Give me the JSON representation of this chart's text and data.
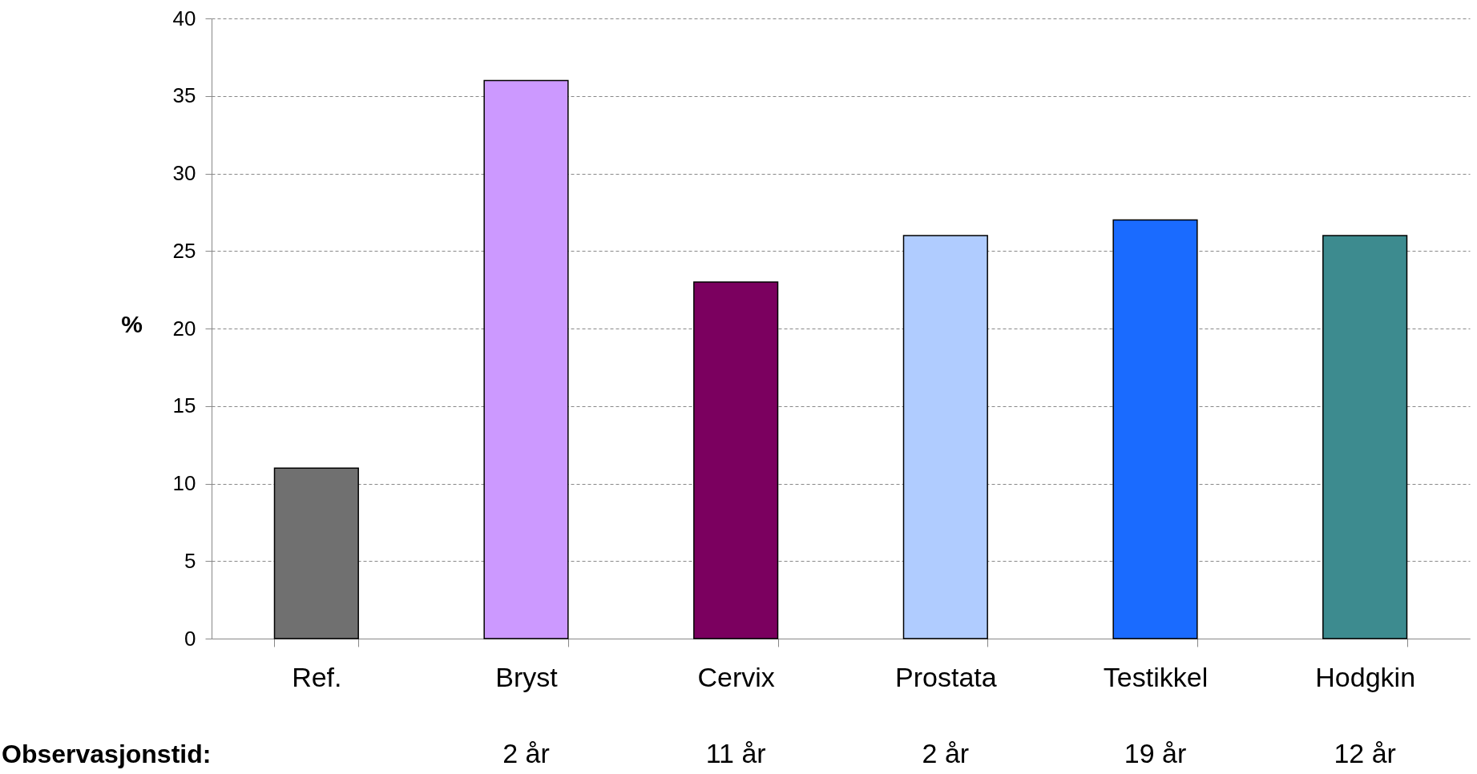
{
  "chart_data": {
    "type": "bar",
    "ylabel": "%",
    "categories": [
      "Ref.",
      "Bryst",
      "Cervix",
      "Prostata",
      "Testikkel",
      "Hodgkin"
    ],
    "values": [
      11,
      36,
      23,
      26,
      27,
      26
    ],
    "colors": [
      "#707070",
      "#cc99ff",
      "#7b005f",
      "#b0ccff",
      "#1a6bff",
      "#3d8b8f"
    ],
    "ylim": [
      0,
      40
    ],
    "yticks": [
      0,
      5,
      10,
      15,
      20,
      25,
      30,
      35,
      40
    ],
    "grid": "y",
    "annotations": [
      "Observasjonstid:",
      "2 år",
      "11 år",
      "2 år",
      "19 år",
      "12 år"
    ]
  }
}
